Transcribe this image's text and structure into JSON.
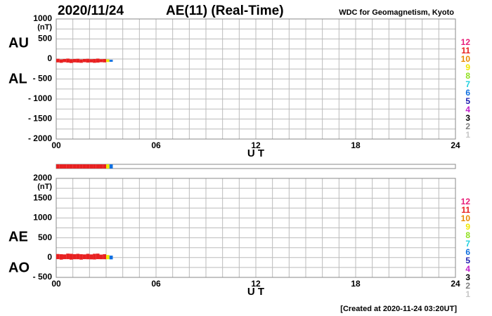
{
  "header": {
    "date": "2020/11/24",
    "title": "AE(11) (Real-Time)",
    "source": "WDC for Geomagnetism, Kyoto"
  },
  "footer": "[Created at 2020-11-24 03:20UT]",
  "chart_data": [
    {
      "type": "range",
      "y_label": "(nT)",
      "x_label": "U T",
      "x": [
        0,
        0.2,
        0.4,
        0.6,
        0.8,
        1.0,
        1.2,
        1.4,
        1.6,
        1.8,
        2.0,
        2.2,
        2.4,
        2.6,
        2.8,
        3.0,
        3.2
      ],
      "series": [
        {
          "name": "AU",
          "values": [
            5,
            -10,
            0,
            10,
            -5,
            0,
            5,
            -10,
            0,
            5,
            -5,
            0,
            10,
            -5,
            0,
            -10,
            -20
          ]
        },
        {
          "name": "AL",
          "values": [
            -85,
            -95,
            -80,
            -90,
            -100,
            -85,
            -90,
            -95,
            -80,
            -90,
            -85,
            -95,
            -90,
            -80,
            -85,
            -75,
            -70
          ]
        }
      ],
      "stations": [
        11,
        11,
        11,
        11,
        11,
        11,
        11,
        11,
        11,
        11,
        11,
        11,
        11,
        11,
        11,
        9,
        6
      ],
      "xlim": [
        0,
        24
      ],
      "xticks": [
        {
          "value": 0,
          "label": "00"
        },
        {
          "value": 6,
          "label": "06"
        },
        12,
        18,
        24
      ],
      "ylim": [
        -2000,
        1000
      ],
      "yticks": [
        1000,
        500,
        0,
        {
          "value": -500,
          "label": "- 500"
        },
        {
          "value": -1000,
          "label": "- 1000"
        },
        {
          "value": -1500,
          "label": "- 1500"
        },
        {
          "value": -2000,
          "label": "- 2000"
        }
      ],
      "grid_step_x": 1,
      "grid_step_y": 250,
      "strip": true,
      "station_counts": [
        12,
        11,
        10,
        9,
        8,
        7,
        6,
        5,
        4,
        3,
        2,
        1
      ],
      "station_colors": [
        "#e8207a",
        "#e82020",
        "#e88a00",
        "#f0e800",
        "#90e020",
        "#20d0e0",
        "#1070e0",
        "#2020b0",
        "#c020c8",
        "#000000",
        "#808080",
        "#c8c8c8"
      ]
    },
    {
      "type": "range",
      "y_label": "(nT)",
      "x_label": "U T",
      "x": [
        0,
        0.2,
        0.4,
        0.6,
        0.8,
        1.0,
        1.2,
        1.4,
        1.6,
        1.8,
        2.0,
        2.2,
        2.4,
        2.6,
        2.8,
        3.0,
        3.2
      ],
      "series": [
        {
          "name": "AE",
          "values": [
            90,
            85,
            80,
            100,
            95,
            85,
            95,
            85,
            80,
            95,
            80,
            95,
            100,
            75,
            85,
            65,
            50
          ]
        },
        {
          "name": "AO",
          "values": [
            -40,
            -52,
            -40,
            -40,
            -52,
            -42,
            -42,
            -52,
            -40,
            -42,
            -45,
            -48,
            -40,
            -42,
            -42,
            -42,
            -45
          ]
        }
      ],
      "stations": [
        11,
        11,
        11,
        11,
        11,
        11,
        11,
        11,
        11,
        11,
        11,
        11,
        11,
        11,
        11,
        9,
        6
      ],
      "xlim": [
        0,
        24
      ],
      "xticks": [
        {
          "value": 0,
          "label": "00"
        },
        {
          "value": 6,
          "label": "06"
        },
        12,
        18,
        24
      ],
      "ylim": [
        -500,
        2000
      ],
      "yticks": [
        2000,
        1500,
        1000,
        500,
        0,
        {
          "value": -500,
          "label": "- 500"
        }
      ],
      "grid_step_x": 1,
      "grid_step_y": 250,
      "strip": false,
      "station_counts": [
        12,
        11,
        10,
        9,
        8,
        7,
        6,
        5,
        4,
        3,
        2,
        1
      ],
      "station_colors": [
        "#e8207a",
        "#e82020",
        "#e88a00",
        "#f0e800",
        "#90e020",
        "#20d0e0",
        "#1070e0",
        "#2020b0",
        "#c020c8",
        "#000000",
        "#808080",
        "#c8c8c8"
      ]
    }
  ]
}
